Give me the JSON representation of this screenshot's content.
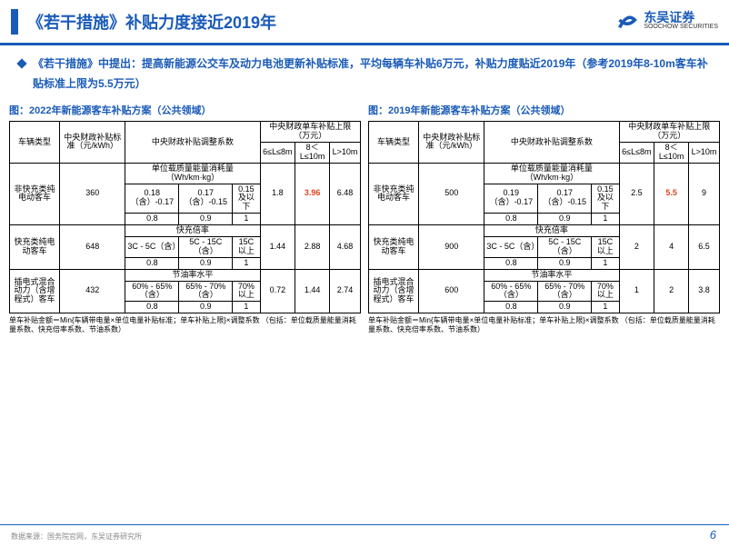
{
  "header": {
    "title": "《若干措施》补贴力度接近2019年"
  },
  "logo": {
    "name": "东吴证券",
    "sub": "SOOCHOW SECURITIES"
  },
  "intro": "《若干措施》中提出：提高新能源公交车及动力电池更新补贴标准，平均每辆车补贴6万元，补贴力度贴近2019年（参考2019年8-10m客车补贴标准上限为5.5万元）",
  "t2022": {
    "title": "图：2022年新能源客车补贴方案（公共领域）",
    "h": {
      "c1": "车辆类型",
      "c2": "中央财政补贴标准（元/kWh）",
      "c3": "中央财政补贴调整系数",
      "c4": "中央财政单车补贴上限（万元）",
      "r1": "6≤L≤8m",
      "r2": "8＜L≤10m",
      "r3": "L>10m"
    },
    "rows": [
      {
        "type": "非快充类纯电动客车",
        "std": "360",
        "sub": "单位载质量能量消耗量（Wh/km·kg）",
        "a": "0.18（含）-0.17",
        "b": "0.17（含）-0.15",
        "c": "0.15及以下",
        "a2": "0.8",
        "b2": "0.9",
        "c2": "1",
        "u1": "1.8",
        "u2": "3.96",
        "u3": "6.48",
        "u2red": true
      },
      {
        "type": "快充类纯电动客车",
        "std": "648",
        "sub": "快充倍率",
        "a": "3C - 5C（含）",
        "b": "5C - 15C（含）",
        "c": "15C以上",
        "a2": "0.8",
        "b2": "0.9",
        "c2": "1",
        "u1": "1.44",
        "u2": "2.88",
        "u3": "4.68"
      },
      {
        "type": "插电式混合动力（含增程式）客车",
        "std": "432",
        "sub": "节油率水平",
        "a": "60% - 65%（含）",
        "b": "65% - 70%（含）",
        "c": "70%以上",
        "a2": "0.8",
        "b2": "0.9",
        "c2": "1",
        "u1": "0.72",
        "u2": "1.44",
        "u3": "2.74"
      }
    ],
    "note": "单车补贴金额＝Min{车辆带电量×单位电量补贴标准；单车补贴上限}×调整系数 （包括：单位载质量能量消耗量系数、快充倍率系数、节油系数）"
  },
  "t2019": {
    "title": "图：2019年新能源客车补贴方案（公共领域）",
    "h": {
      "c1": "车辆类型",
      "c2": "中央财政补贴标准（元/kWh）",
      "c3": "中央财政补贴调整系数",
      "c4": "中央财政单车补贴上限（万元）",
      "r1": "6≤L≤8m",
      "r2": "8＜L≤10m",
      "r3": "L>10m"
    },
    "rows": [
      {
        "type": "非快充类纯电动客车",
        "std": "500",
        "sub": "单位载质量能量消耗量（Wh/km·kg）",
        "a": "0.19（含）-0.17",
        "b": "0.17（含）-0.15",
        "c": "0.15及以下",
        "a2": "0.8",
        "b2": "0.9",
        "c2": "1",
        "u1": "2.5",
        "u2": "5.5",
        "u3": "9",
        "u2red": true
      },
      {
        "type": "快充类纯电动客车",
        "std": "900",
        "sub": "快充倍率",
        "a": "3C - 5C（含）",
        "b": "5C - 15C（含）",
        "c": "15C以上",
        "a2": "0.8",
        "b2": "0.9",
        "c2": "1",
        "u1": "2",
        "u2": "4",
        "u3": "6.5"
      },
      {
        "type": "插电式混合动力（含增程式）客车",
        "std": "600",
        "sub": "节油率水平",
        "a": "60% - 65%（含）",
        "b": "65% - 70%（含）",
        "c": "70%以上",
        "a2": "0.8",
        "b2": "0.9",
        "c2": "1",
        "u1": "1",
        "u2": "2",
        "u3": "3.8"
      }
    ],
    "note": "单车补贴金额＝Min{车辆带电量×单位电量补贴标准；单车补贴上限}×调整系数 （包括：单位载质量能量消耗量系数、快充倍率系数、节油系数）"
  },
  "footer": "数据来源：国务院官网，东吴证券研究所",
  "page": "6"
}
